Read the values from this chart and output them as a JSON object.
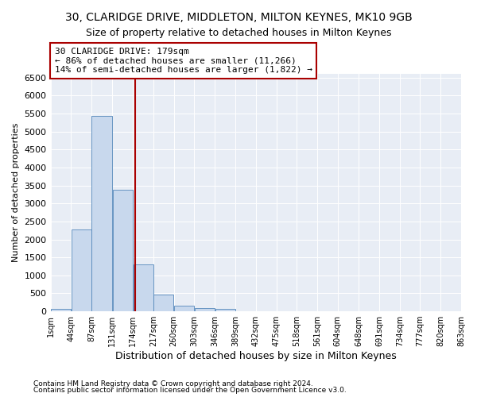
{
  "title1": "30, CLARIDGE DRIVE, MIDDLETON, MILTON KEYNES, MK10 9GB",
  "title2": "Size of property relative to detached houses in Milton Keynes",
  "xlabel": "Distribution of detached houses by size in Milton Keynes",
  "ylabel": "Number of detached properties",
  "footnote1": "Contains HM Land Registry data © Crown copyright and database right 2024.",
  "footnote2": "Contains public sector information licensed under the Open Government Licence v3.0.",
  "bin_edges": [
    1,
    44,
    87,
    131,
    174,
    217,
    260,
    303,
    346,
    389,
    432,
    475,
    518,
    561,
    604,
    648,
    691,
    734,
    777,
    820,
    863
  ],
  "bin_labels": [
    "1sqm",
    "44sqm",
    "87sqm",
    "131sqm",
    "174sqm",
    "217sqm",
    "260sqm",
    "303sqm",
    "346sqm",
    "389sqm",
    "432sqm",
    "475sqm",
    "518sqm",
    "561sqm",
    "604sqm",
    "648sqm",
    "691sqm",
    "734sqm",
    "777sqm",
    "820sqm",
    "863sqm"
  ],
  "bar_heights": [
    75,
    2270,
    5430,
    3380,
    1310,
    475,
    165,
    85,
    65,
    0,
    0,
    0,
    0,
    0,
    0,
    0,
    0,
    0,
    0,
    0
  ],
  "bar_color": "#c8d8ed",
  "bar_edge_color": "#5588bb",
  "property_size": 179,
  "property_line_color": "#aa0000",
  "annotation_text": "30 CLARIDGE DRIVE: 179sqm\n← 86% of detached houses are smaller (11,266)\n14% of semi-detached houses are larger (1,822) →",
  "annotation_box_color": "#aa0000",
  "ylim": [
    0,
    6600
  ],
  "yticks": [
    0,
    500,
    1000,
    1500,
    2000,
    2500,
    3000,
    3500,
    4000,
    4500,
    5000,
    5500,
    6000,
    6500
  ],
  "plot_bg_color": "#e8edf5",
  "title1_fontsize": 10,
  "title2_fontsize": 9
}
